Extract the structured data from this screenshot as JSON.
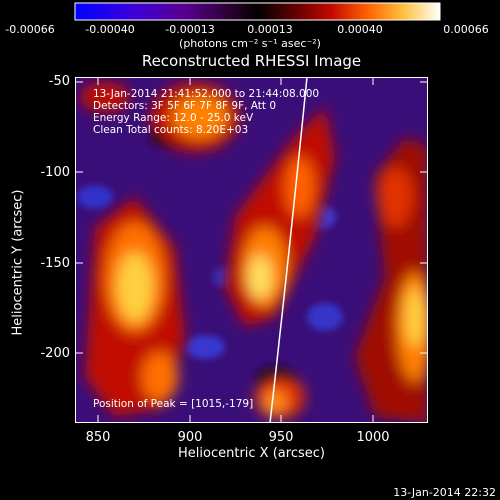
{
  "colorbar": {
    "ticks": [
      "-0.00066",
      "-0.00040",
      "-0.00013",
      "0.00013",
      "0.00040",
      "0.00066"
    ],
    "units": "(photons cm⁻² s⁻¹ asec⁻²)",
    "colors": [
      "#0000ff",
      "#5a00c8",
      "#1a0030",
      "#000000",
      "#600000",
      "#d01000",
      "#ff7000",
      "#ffe060",
      "#ffffff"
    ]
  },
  "plot": {
    "title": "Reconstructed RHESSI Image",
    "info_lines": [
      "13-Jan-2014 21:41:52.000 to 21:44:08.000",
      "Detectors: 3F 5F 6F 7F 8F 9F, Att 0",
      "Energy Range: 12.0 - 25.0 keV",
      "Clean    Total counts: 8.20E+03"
    ],
    "peak_label": "Position of Peak = [1015,-179]",
    "xlabel": "Heliocentric X (arcsec)",
    "ylabel": "Heliocentric Y (arcsec)",
    "xticks": [
      "850",
      "900",
      "950",
      "1000"
    ],
    "yticks": [
      "-50",
      "-100",
      "-150",
      "-200"
    ],
    "xlim": [
      837,
      1030
    ],
    "ylim": [
      -45,
      -237
    ]
  },
  "footer": {
    "timestamp": "13-Jan-2014 22:32"
  }
}
